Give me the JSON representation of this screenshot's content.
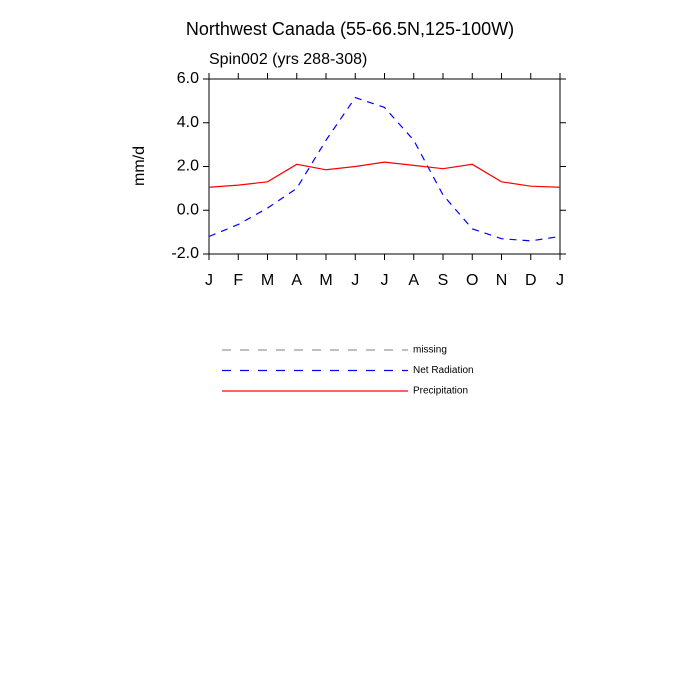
{
  "chart_data": {
    "type": "line",
    "title": "Northwest Canada (55-66.5N,125-100W)",
    "subtitle": "Spin002 (yrs 288-308)",
    "ylabel": "mm/d",
    "categories": [
      "J",
      "F",
      "M",
      "A",
      "M",
      "J",
      "J",
      "A",
      "S",
      "O",
      "N",
      "D",
      "J"
    ],
    "series": [
      {
        "name": "missing",
        "color": "#999999",
        "dashed": true,
        "values": [
          null,
          null,
          null,
          null,
          null,
          null,
          null,
          null,
          null,
          null,
          null,
          null,
          null
        ]
      },
      {
        "name": "Net Radiation",
        "color": "#0000ff",
        "dashed": true,
        "values": [
          -1.2,
          -0.65,
          0.1,
          1.0,
          3.2,
          5.15,
          4.7,
          3.2,
          0.7,
          -0.85,
          -1.3,
          -1.4,
          -1.2
        ]
      },
      {
        "name": "Precipitation",
        "color": "#ff0000",
        "dashed": false,
        "values": [
          1.05,
          1.15,
          1.3,
          2.1,
          1.85,
          2.0,
          2.2,
          2.05,
          1.9,
          2.1,
          1.3,
          1.1,
          1.05
        ]
      }
    ],
    "ylim": [
      -2,
      6
    ],
    "yticks": [
      {
        "value": -2,
        "label": "-2.0"
      },
      {
        "value": 0,
        "label": "0.0"
      },
      {
        "value": 2,
        "label": "2.0"
      },
      {
        "value": 4,
        "label": "4.0"
      },
      {
        "value": 6,
        "label": "6.0"
      }
    ]
  }
}
